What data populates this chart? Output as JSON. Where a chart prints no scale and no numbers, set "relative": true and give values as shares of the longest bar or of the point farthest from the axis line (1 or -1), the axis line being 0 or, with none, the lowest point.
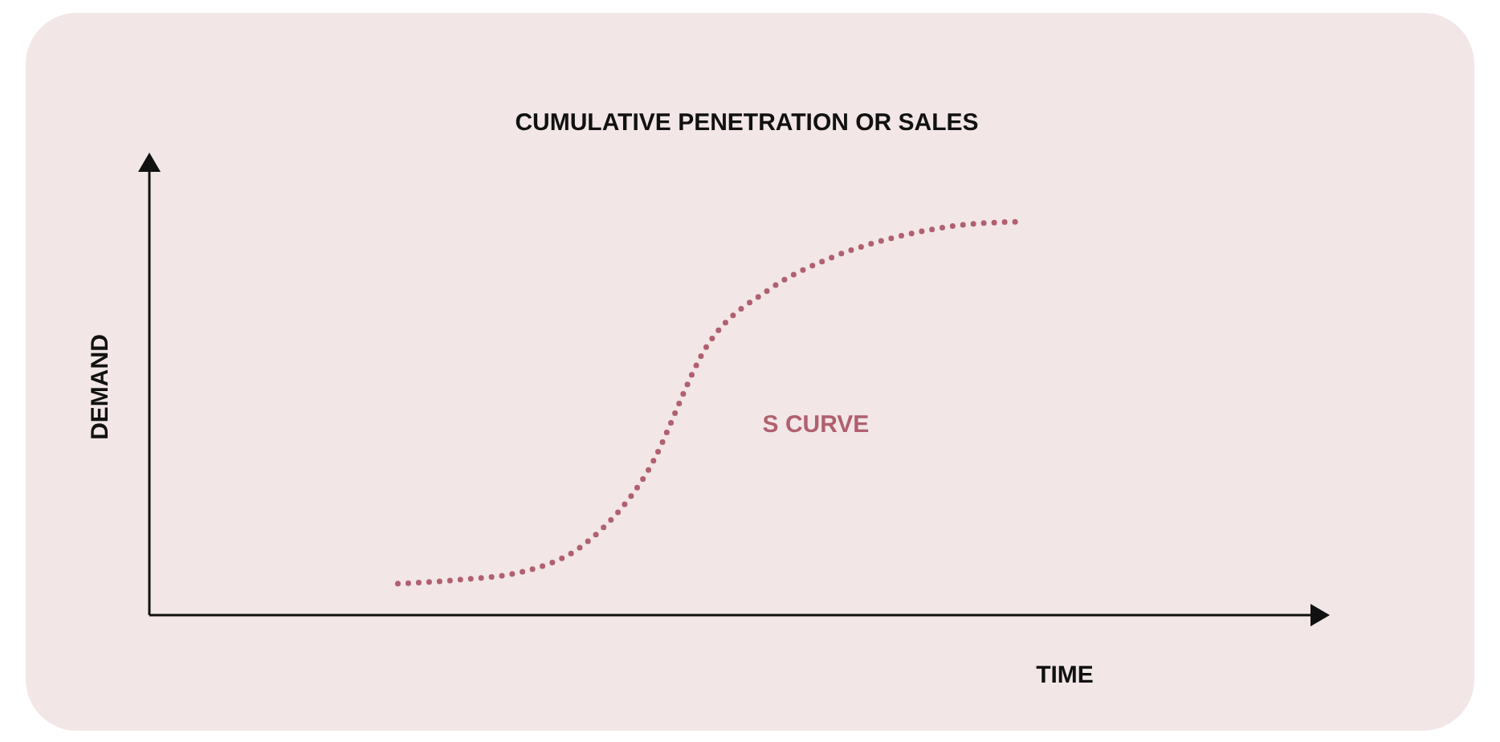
{
  "chart_data": {
    "type": "line",
    "title": "CUMULATIVE PENETRATION OR SALES",
    "xlabel": "TIME",
    "ylabel": "DEMAND",
    "relative": true,
    "categories": [
      null,
      null,
      null,
      null,
      null,
      null,
      null,
      null,
      null,
      null,
      null,
      null,
      null,
      null,
      null,
      null,
      null,
      null,
      null,
      null
    ],
    "series": [
      {
        "color": "#b0606f",
        "values": [
          null,
          null,
          null,
          null,
          0.08,
          0.09,
          0.11,
          0.18,
          0.36,
          0.69,
          0.83,
          0.91,
          0.96,
          0.99,
          1.0,
          null,
          null,
          null,
          null,
          null
        ]
      }
    ],
    "annotations": [
      "S CURVE"
    ],
    "line_style": "dotted",
    "marker": "none"
  }
}
